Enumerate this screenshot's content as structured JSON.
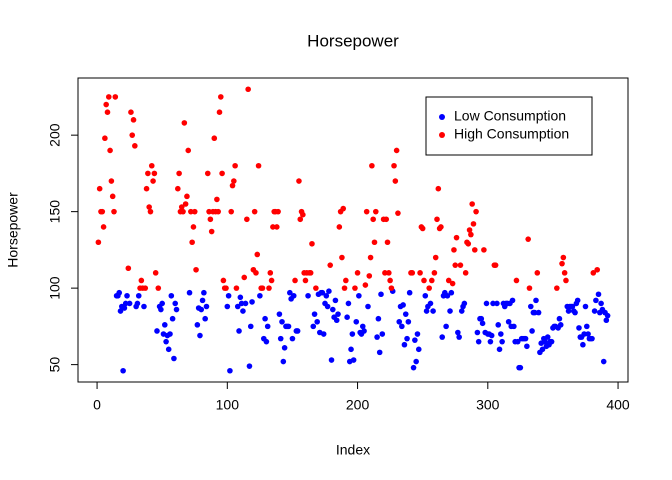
{
  "chart_data": {
    "type": "scatter",
    "title": "Horsepower",
    "x_label": "Index",
    "y_label": "Horsepower",
    "xlim": [
      -14.64,
      407.64
    ],
    "ylim": [
      38.64,
      237.36
    ],
    "xticks": [
      0,
      100,
      200,
      300,
      400
    ],
    "yticks": [
      50,
      100,
      150,
      200
    ],
    "legend": "topright",
    "x": [
      1,
      2,
      3,
      4,
      5,
      6,
      7,
      8,
      9,
      10,
      11,
      12,
      13,
      14,
      15,
      16,
      17,
      18,
      19,
      20,
      21,
      22,
      23,
      24,
      25,
      26,
      27,
      28,
      29,
      30,
      31,
      32,
      33,
      34,
      35,
      36,
      37,
      38,
      39,
      40,
      41,
      42,
      43,
      44,
      45,
      46,
      47,
      48,
      49,
      50,
      51,
      52,
      53,
      54,
      55,
      56,
      57,
      58,
      59,
      60,
      61,
      62,
      63,
      64,
      65,
      66,
      67,
      68,
      69,
      70,
      71,
      72,
      73,
      74,
      75,
      76,
      77,
      78,
      79,
      80,
      81,
      82,
      83,
      84,
      85,
      86,
      87,
      88,
      89,
      90,
      91,
      92,
      93,
      94,
      95,
      96,
      97,
      98,
      99,
      100,
      101,
      102,
      103,
      104,
      105,
      106,
      107,
      108,
      109,
      110,
      111,
      112,
      113,
      114,
      115,
      116,
      117,
      118,
      119,
      120,
      121,
      122,
      123,
      124,
      125,
      126,
      127,
      128,
      129,
      130,
      131,
      132,
      133,
      134,
      135,
      136,
      137,
      138,
      139,
      140,
      141,
      142,
      143,
      144,
      145,
      146,
      147,
      148,
      149,
      150,
      151,
      152,
      153,
      154,
      155,
      156,
      157,
      158,
      159,
      160,
      161,
      162,
      163,
      164,
      165,
      166,
      167,
      168,
      169,
      170,
      171,
      172,
      173,
      174,
      175,
      176,
      177,
      178,
      179,
      180,
      181,
      182,
      183,
      184,
      185,
      186,
      187,
      188,
      189,
      190,
      191,
      192,
      193,
      194,
      195,
      196,
      197,
      198,
      199,
      200,
      201,
      202,
      203,
      204,
      205,
      206,
      207,
      208,
      209,
      210,
      211,
      212,
      213,
      214,
      215,
      216,
      217,
      218,
      219,
      220,
      221,
      222,
      223,
      224,
      225,
      226,
      227,
      228,
      229,
      230,
      231,
      232,
      233,
      234,
      235,
      236,
      237,
      238,
      239,
      240,
      241,
      242,
      243,
      244,
      245,
      246,
      247,
      248,
      249,
      250,
      251,
      252,
      253,
      254,
      255,
      256,
      257,
      258,
      259,
      260,
      261,
      262,
      263,
      264,
      265,
      266,
      267,
      268,
      269,
      270,
      271,
      272,
      273,
      274,
      275,
      276,
      277,
      278,
      279,
      280,
      281,
      282,
      283,
      284,
      285,
      286,
      287,
      288,
      289,
      290,
      291,
      292,
      293,
      294,
      295,
      296,
      297,
      298,
      299,
      300,
      301,
      302,
      303,
      304,
      305,
      306,
      307,
      308,
      309,
      310,
      311,
      312,
      313,
      314,
      315,
      316,
      317,
      318,
      319,
      320,
      321,
      322,
      323,
      324,
      325,
      326,
      327,
      328,
      329,
      330,
      331,
      332,
      333,
      334,
      335,
      336,
      337,
      338,
      339,
      340,
      341,
      342,
      343,
      344,
      345,
      346,
      347,
      348,
      349,
      350,
      351,
      352,
      353,
      354,
      355,
      356,
      357,
      358,
      359,
      360,
      361,
      362,
      363,
      364,
      365,
      366,
      367,
      368,
      369,
      370,
      371,
      372,
      373,
      374,
      375,
      376,
      377,
      378,
      379,
      380,
      381,
      382,
      383,
      384,
      385,
      386,
      387,
      388,
      389,
      390,
      391,
      392
    ],
    "series": [
      {
        "name": "Low Consumption",
        "color": "#0000ff",
        "values": [
          null,
          null,
          null,
          null,
          null,
          null,
          null,
          null,
          null,
          null,
          null,
          null,
          null,
          null,
          95,
          95,
          97,
          85,
          88,
          46,
          87,
          90,
          95,
          null,
          90,
          null,
          null,
          null,
          null,
          88,
          90,
          95,
          null,
          null,
          null,
          88,
          null,
          null,
          null,
          null,
          null,
          null,
          null,
          null,
          null,
          72,
          null,
          88,
          86,
          90,
          70,
          76,
          65,
          69,
          60,
          70,
          95,
          80,
          54,
          90,
          86,
          null,
          null,
          null,
          null,
          null,
          null,
          null,
          null,
          null,
          97,
          null,
          null,
          null,
          null,
          null,
          76,
          87,
          69,
          86,
          92,
          97,
          80,
          88,
          null,
          null,
          null,
          null,
          null,
          null,
          null,
          null,
          null,
          null,
          null,
          null,
          null,
          null,
          null,
          88,
          95,
          46,
          null,
          null,
          null,
          null,
          null,
          88,
          72,
          94,
          90,
          85,
          null,
          90,
          null,
          null,
          49,
          75,
          91,
          null,
          null,
          null,
          null,
          null,
          95,
          null,
          null,
          67,
          80,
          65,
          75,
          null,
          null,
          null,
          null,
          null,
          null,
          null,
          null,
          83,
          67,
          78,
          52,
          61,
          75,
          75,
          75,
          97,
          93,
          67,
          95,
          null,
          72,
          72,
          null,
          null,
          null,
          null,
          null,
          null,
          null,
          95,
          null,
          null,
          null,
          75,
          83,
          null,
          78,
          96,
          71,
          97,
          97,
          70,
          90,
          95,
          88,
          98,
          null,
          53,
          86,
          81,
          92,
          79,
          83,
          null,
          null,
          null,
          null,
          null,
          null,
          81,
          90,
          52,
          60,
          70,
          53,
          null,
          78,
          null,
          95,
          71,
          70,
          75,
          72,
          null,
          null,
          88,
          null,
          null,
          null,
          null,
          null,
          null,
          68,
          80,
          58,
          96,
          70,
          null,
          null,
          null,
          null,
          null,
          null,
          null,
          98,
          null,
          null,
          null,
          null,
          78,
          88,
          75,
          89,
          63,
          83,
          67,
          78,
          97,
          null,
          null,
          48,
          66,
          52,
          70,
          60,
          null,
          null,
          null,
          null,
          95,
          85,
          88,
          null,
          90,
          null,
          85,
          null,
          null,
          null,
          null,
          null,
          null,
          68,
          95,
          97,
          75,
          95,
          null,
          85,
          97,
          null,
          null,
          null,
          null,
          71,
          68,
          null,
          85,
          88,
          90,
          null,
          null,
          null,
          null,
          null,
          null,
          null,
          null,
          null,
          71,
          65,
          80,
          80,
          77,
          null,
          71,
          90,
          70,
          70,
          65,
          69,
          90,
          null,
          null,
          90,
          76,
          60,
          70,
          65,
          90,
          88,
          90,
          90,
          78,
          90,
          75,
          92,
          75,
          65,
          null,
          65,
          48,
          48,
          67,
          67,
          67,
          67,
          62,
          null,
          null,
          88,
          72,
          84,
          84,
          92,
          null,
          84,
          58,
          64,
          60,
          67,
          65,
          62,
          68,
          63,
          65,
          65,
          74,
          75,
          75,
          null,
          74,
          80,
          76,
          null,
          null,
          null,
          null,
          88,
          85,
          88,
          88,
          88,
          85,
          84,
          90,
          92,
          74,
          68,
          68,
          63,
          70,
          88,
          75,
          70,
          67,
          67,
          67,
          null,
          85,
          92,
          null,
          96,
          84,
          90,
          86,
          52,
          84,
          79,
          82
        ]
      },
      {
        "name": "High Consumption",
        "color": "#ff0000",
        "values": [
          130,
          165,
          150,
          150,
          140,
          198,
          220,
          215,
          225,
          190,
          170,
          160,
          150,
          225,
          null,
          null,
          null,
          null,
          null,
          null,
          null,
          null,
          null,
          113,
          null,
          215,
          200,
          210,
          193,
          null,
          null,
          null,
          100,
          105,
          100,
          null,
          100,
          165,
          175,
          153,
          150,
          180,
          170,
          175,
          110,
          null,
          100,
          null,
          null,
          null,
          null,
          null,
          null,
          null,
          null,
          null,
          null,
          null,
          null,
          null,
          null,
          165,
          175,
          150,
          153,
          150,
          208,
          155,
          160,
          190,
          null,
          150,
          130,
          140,
          150,
          112,
          null,
          null,
          null,
          null,
          null,
          null,
          null,
          null,
          175,
          150,
          145,
          137,
          150,
          198,
          150,
          158,
          150,
          215,
          225,
          175,
          105,
          100,
          100,
          null,
          null,
          null,
          150,
          167,
          170,
          180,
          100,
          null,
          null,
          null,
          null,
          null,
          107,
          null,
          145,
          230,
          null,
          null,
          null,
          112,
          150,
          110,
          122,
          180,
          null,
          100,
          100,
          null,
          null,
          null,
          null,
          100,
          110,
          105,
          140,
          150,
          150,
          140,
          150,
          null,
          null,
          null,
          null,
          null,
          null,
          null,
          null,
          null,
          null,
          null,
          null,
          105,
          null,
          null,
          170,
          145,
          150,
          148,
          110,
          105,
          110,
          null,
          110,
          110,
          129,
          null,
          null,
          100,
          null,
          null,
          null,
          null,
          null,
          null,
          null,
          null,
          null,
          null,
          115,
          null,
          null,
          null,
          null,
          null,
          null,
          140,
          150,
          120,
          152,
          100,
          105,
          null,
          null,
          null,
          null,
          null,
          null,
          100,
          null,
          110,
          null,
          null,
          null,
          null,
          null,
          102,
          150,
          null,
          108,
          120,
          180,
          145,
          130,
          150,
          null,
          null,
          null,
          null,
          null,
          145,
          110,
          145,
          130,
          110,
          105,
          100,
          null,
          180,
          170,
          190,
          149,
          null,
          null,
          null,
          null,
          null,
          null,
          null,
          null,
          null,
          110,
          110,
          null,
          null,
          null,
          null,
          null,
          110,
          140,
          139,
          105,
          null,
          null,
          null,
          100,
          null,
          105,
          null,
          110,
          120,
          145,
          165,
          139,
          140,
          null,
          null,
          null,
          null,
          null,
          105,
          null,
          null,
          103,
          125,
          115,
          133,
          null,
          null,
          115,
          null,
          null,
          null,
          110,
          130,
          129,
          138,
          135,
          155,
          142,
          125,
          150,
          null,
          null,
          null,
          null,
          null,
          125,
          null,
          null,
          null,
          null,
          null,
          null,
          null,
          115,
          115,
          null,
          null,
          null,
          null,
          null,
          null,
          null,
          null,
          null,
          null,
          null,
          null,
          null,
          null,
          null,
          105,
          null,
          null,
          null,
          null,
          null,
          null,
          null,
          null,
          132,
          100,
          null,
          null,
          null,
          null,
          null,
          110,
          null,
          null,
          null,
          null,
          null,
          null,
          null,
          null,
          null,
          null,
          null,
          null,
          null,
          null,
          100,
          null,
          null,
          null,
          116,
          120,
          110,
          105,
          null,
          null,
          null,
          null,
          null,
          null,
          null,
          null,
          null,
          null,
          null,
          null,
          null,
          null,
          null,
          null,
          null,
          null,
          null,
          null,
          110,
          null,
          null,
          112,
          null,
          null,
          null,
          null,
          null,
          null,
          null,
          null
        ]
      }
    ]
  }
}
